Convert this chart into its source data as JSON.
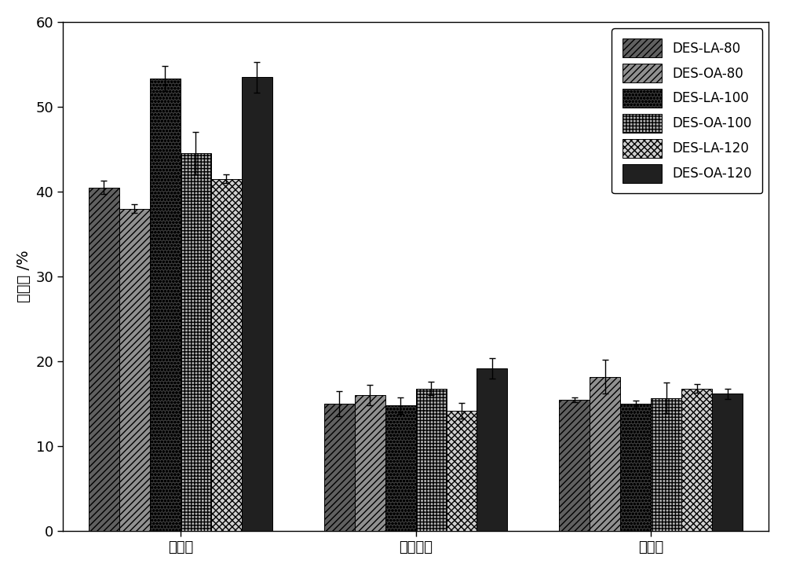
{
  "categories": [
    "纤维素",
    "半纤维素",
    "木质素"
  ],
  "series": [
    {
      "label": "DES-LA-80",
      "values": [
        40.5,
        15.0,
        15.5
      ],
      "errors": [
        0.8,
        1.5,
        0.3
      ],
      "facecolor": "#606060",
      "hatch": "////"
    },
    {
      "label": "DES-OA-80",
      "values": [
        38.0,
        16.0,
        18.2
      ],
      "errors": [
        0.5,
        1.2,
        2.0
      ],
      "facecolor": "#909090",
      "hatch": "////"
    },
    {
      "label": "DES-LA-100",
      "values": [
        53.3,
        14.8,
        15.0
      ],
      "errors": [
        1.5,
        1.0,
        0.4
      ],
      "facecolor": "#383838",
      "hatch": "oooo"
    },
    {
      "label": "DES-OA-100",
      "values": [
        44.5,
        16.8,
        15.7
      ],
      "errors": [
        2.5,
        0.8,
        1.8
      ],
      "facecolor": "#b0b0b0",
      "hatch": "++++"
    },
    {
      "label": "DES-LA-120",
      "values": [
        41.5,
        14.2,
        16.8
      ],
      "errors": [
        0.5,
        0.9,
        0.5
      ],
      "facecolor": "#d0d0d0",
      "hatch": "xxxx"
    },
    {
      "label": "DES-OA-120",
      "values": [
        53.5,
        19.2,
        16.2
      ],
      "errors": [
        1.8,
        1.2,
        0.6
      ],
      "facecolor": "#202020",
      "hatch": "####"
    }
  ],
  "ylabel": "百分比 /%",
  "ylim": [
    0,
    60
  ],
  "yticks": [
    0,
    10,
    20,
    30,
    40,
    50,
    60
  ],
  "bar_width": 0.13,
  "background_color": "#ffffff",
  "axis_fontsize": 14,
  "legend_fontsize": 12,
  "tick_fontsize": 13
}
